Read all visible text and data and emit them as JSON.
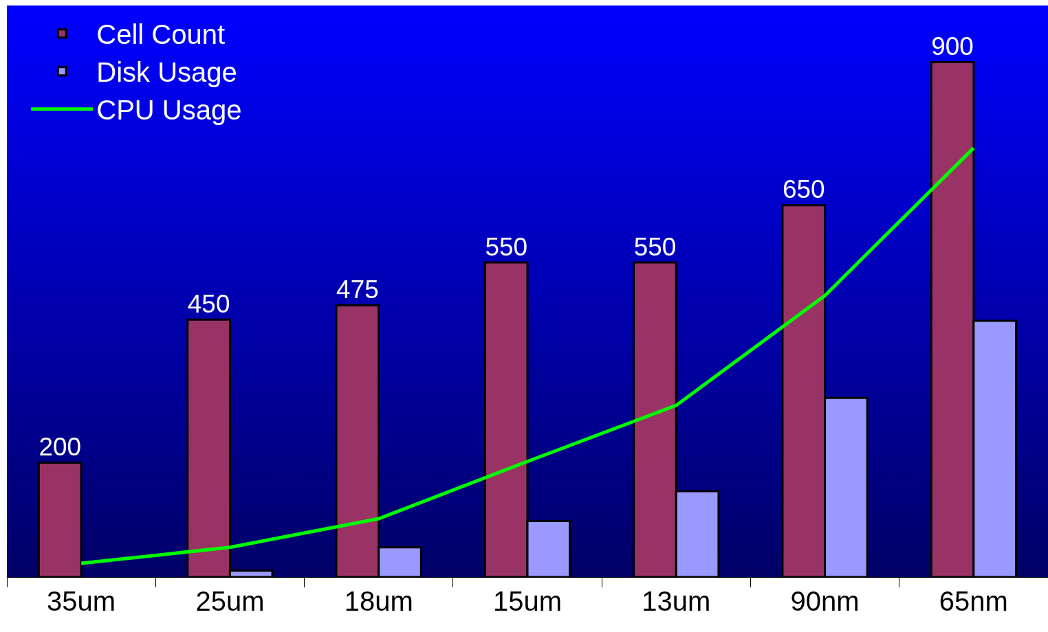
{
  "chart_data": {
    "type": "bar",
    "categories": [
      "35um",
      "25um",
      "18um",
      "15um",
      "13um",
      "90nm",
      "65nm"
    ],
    "series": [
      {
        "name": "Cell Count",
        "color": "#993366",
        "values": [
          200,
          450,
          475,
          550,
          550,
          650,
          900
        ],
        "value_labels": [
          "200",
          "450",
          "475",
          "550",
          "550",
          "650",
          "900"
        ]
      },
      {
        "name": "Disk Usage",
        "color": "#9999ff",
        "values": [
          null,
          11,
          52,
          98,
          150,
          313,
          448
        ]
      },
      {
        "name": "CPU Usage",
        "type": "line",
        "color": "#00ff00",
        "values": [
          24,
          52,
          102,
          202,
          300,
          492,
          750
        ]
      }
    ],
    "legend": "top left",
    "grid": false,
    "marker": "none",
    "line_style": "solid"
  }
}
